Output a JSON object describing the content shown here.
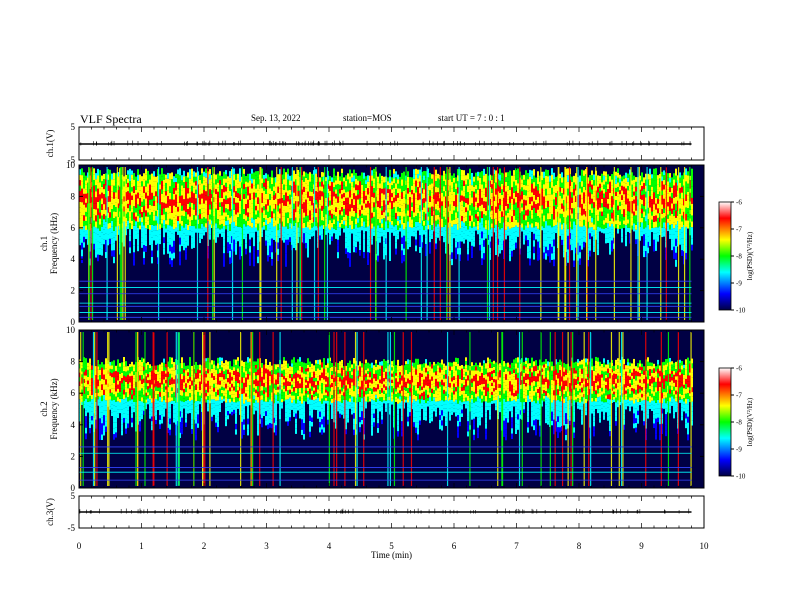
{
  "header": {
    "title": "VLF Spectra",
    "date": "Sep. 13, 2022",
    "station": "station=MOS",
    "start": "start  UT =   7 : 0  : 1"
  },
  "chart_data": [
    {
      "type": "line",
      "panel": "ch1-waveform",
      "ylabel": "ch.1(V)",
      "ylim": [
        -5,
        5
      ],
      "yticks": [
        5,
        -5
      ],
      "x": [
        0,
        9.8
      ],
      "y": [
        0,
        0
      ],
      "color": "#000000"
    },
    {
      "type": "heatmap",
      "panel": "ch1-spectrogram",
      "ylabel": "ch.1\nFrequency (kHz)",
      "ylim": [
        0,
        10
      ],
      "yticks": [
        0,
        2,
        4,
        6,
        8,
        10
      ],
      "data_xlim": [
        0,
        9.8
      ],
      "colorbar": {
        "label": "log(PSD)(V²/Hz)",
        "range": [
          -10,
          -6
        ],
        "ticks": [
          -6,
          -7,
          -8,
          -9,
          -10
        ]
      },
      "dominant_band_khz": [
        6,
        9.5
      ],
      "horizontal_lines_khz": [
        0.3,
        0.6,
        1.0,
        1.2,
        1.8,
        2.2,
        2.6
      ]
    },
    {
      "type": "heatmap",
      "panel": "ch2-spectrogram",
      "ylabel": "ch.2\nFrequency (kHz)",
      "ylim": [
        0,
        10
      ],
      "yticks": [
        0,
        2,
        4,
        6,
        8,
        10
      ],
      "data_xlim": [
        0,
        9.8
      ],
      "colorbar": {
        "label": "log(PSD)(V²/Hz)",
        "range": [
          -10,
          -6
        ],
        "ticks": [
          -6,
          -7,
          -8,
          -9,
          -10
        ]
      },
      "dominant_band_khz": [
        5.5,
        8
      ],
      "horizontal_lines_khz": [
        0.5,
        1.0,
        1.3,
        2.2,
        2.6
      ]
    },
    {
      "type": "line",
      "panel": "ch3-waveform",
      "ylabel": "ch.3(V)",
      "ylim": [
        -5,
        5
      ],
      "yticks": [
        5,
        -5
      ],
      "x": [
        0,
        9.8
      ],
      "y": [
        0,
        0
      ],
      "color": "#000000"
    }
  ],
  "xaxis": {
    "label": "Time (min)",
    "ticks": [
      0,
      1,
      2,
      3,
      4,
      5,
      6,
      7,
      8,
      9,
      10
    ],
    "xlim": [
      0,
      10
    ]
  },
  "colormap": [
    "#000044",
    "#0000ff",
    "#00ffff",
    "#00ff00",
    "#ffff00",
    "#ff0000",
    "#ffffff"
  ]
}
